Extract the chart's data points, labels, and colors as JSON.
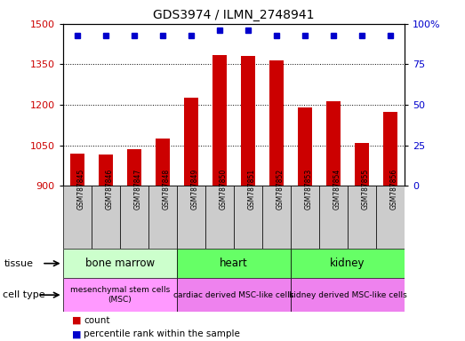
{
  "title": "GDS3974 / ILMN_2748941",
  "samples": [
    "GSM787845",
    "GSM787846",
    "GSM787847",
    "GSM787848",
    "GSM787849",
    "GSM787850",
    "GSM787851",
    "GSM787852",
    "GSM787853",
    "GSM787854",
    "GSM787855",
    "GSM787856"
  ],
  "counts": [
    1020,
    1015,
    1035,
    1075,
    1225,
    1385,
    1380,
    1365,
    1190,
    1215,
    1060,
    1175
  ],
  "percentile_ranks": [
    93,
    93,
    93,
    93,
    93,
    96,
    96,
    93,
    93,
    93,
    93,
    93
  ],
  "ylim_left": [
    900,
    1500
  ],
  "ylim_right": [
    0,
    100
  ],
  "yticks_left": [
    900,
    1050,
    1200,
    1350,
    1500
  ],
  "yticks_right": [
    0,
    25,
    50,
    75,
    100
  ],
  "ytick_right_labels": [
    "0",
    "25",
    "50",
    "75",
    "100%"
  ],
  "bar_color": "#cc0000",
  "dot_color": "#0000cc",
  "tissue_groups": [
    {
      "label": "bone marrow",
      "start": 0,
      "end": 3,
      "color": "#ccffcc"
    },
    {
      "label": "heart",
      "start": 4,
      "end": 7,
      "color": "#66ff66"
    },
    {
      "label": "kidney",
      "start": 8,
      "end": 11,
      "color": "#66ff66"
    }
  ],
  "cell_type_groups": [
    {
      "label": "mesenchymal stem cells\n(MSC)",
      "start": 0,
      "end": 3,
      "color": "#ff99ff"
    },
    {
      "label": "cardiac derived MSC-like cells",
      "start": 4,
      "end": 7,
      "color": "#ee82ee"
    },
    {
      "label": "kidney derived MSC-like cells",
      "start": 8,
      "end": 11,
      "color": "#ee82ee"
    }
  ],
  "legend_count_color": "#cc0000",
  "legend_perc_color": "#0000cc",
  "tissue_label": "tissue",
  "cell_type_label": "cell type",
  "bar_width": 0.5,
  "sample_box_color": "#cccccc",
  "spine_color": "#000000"
}
